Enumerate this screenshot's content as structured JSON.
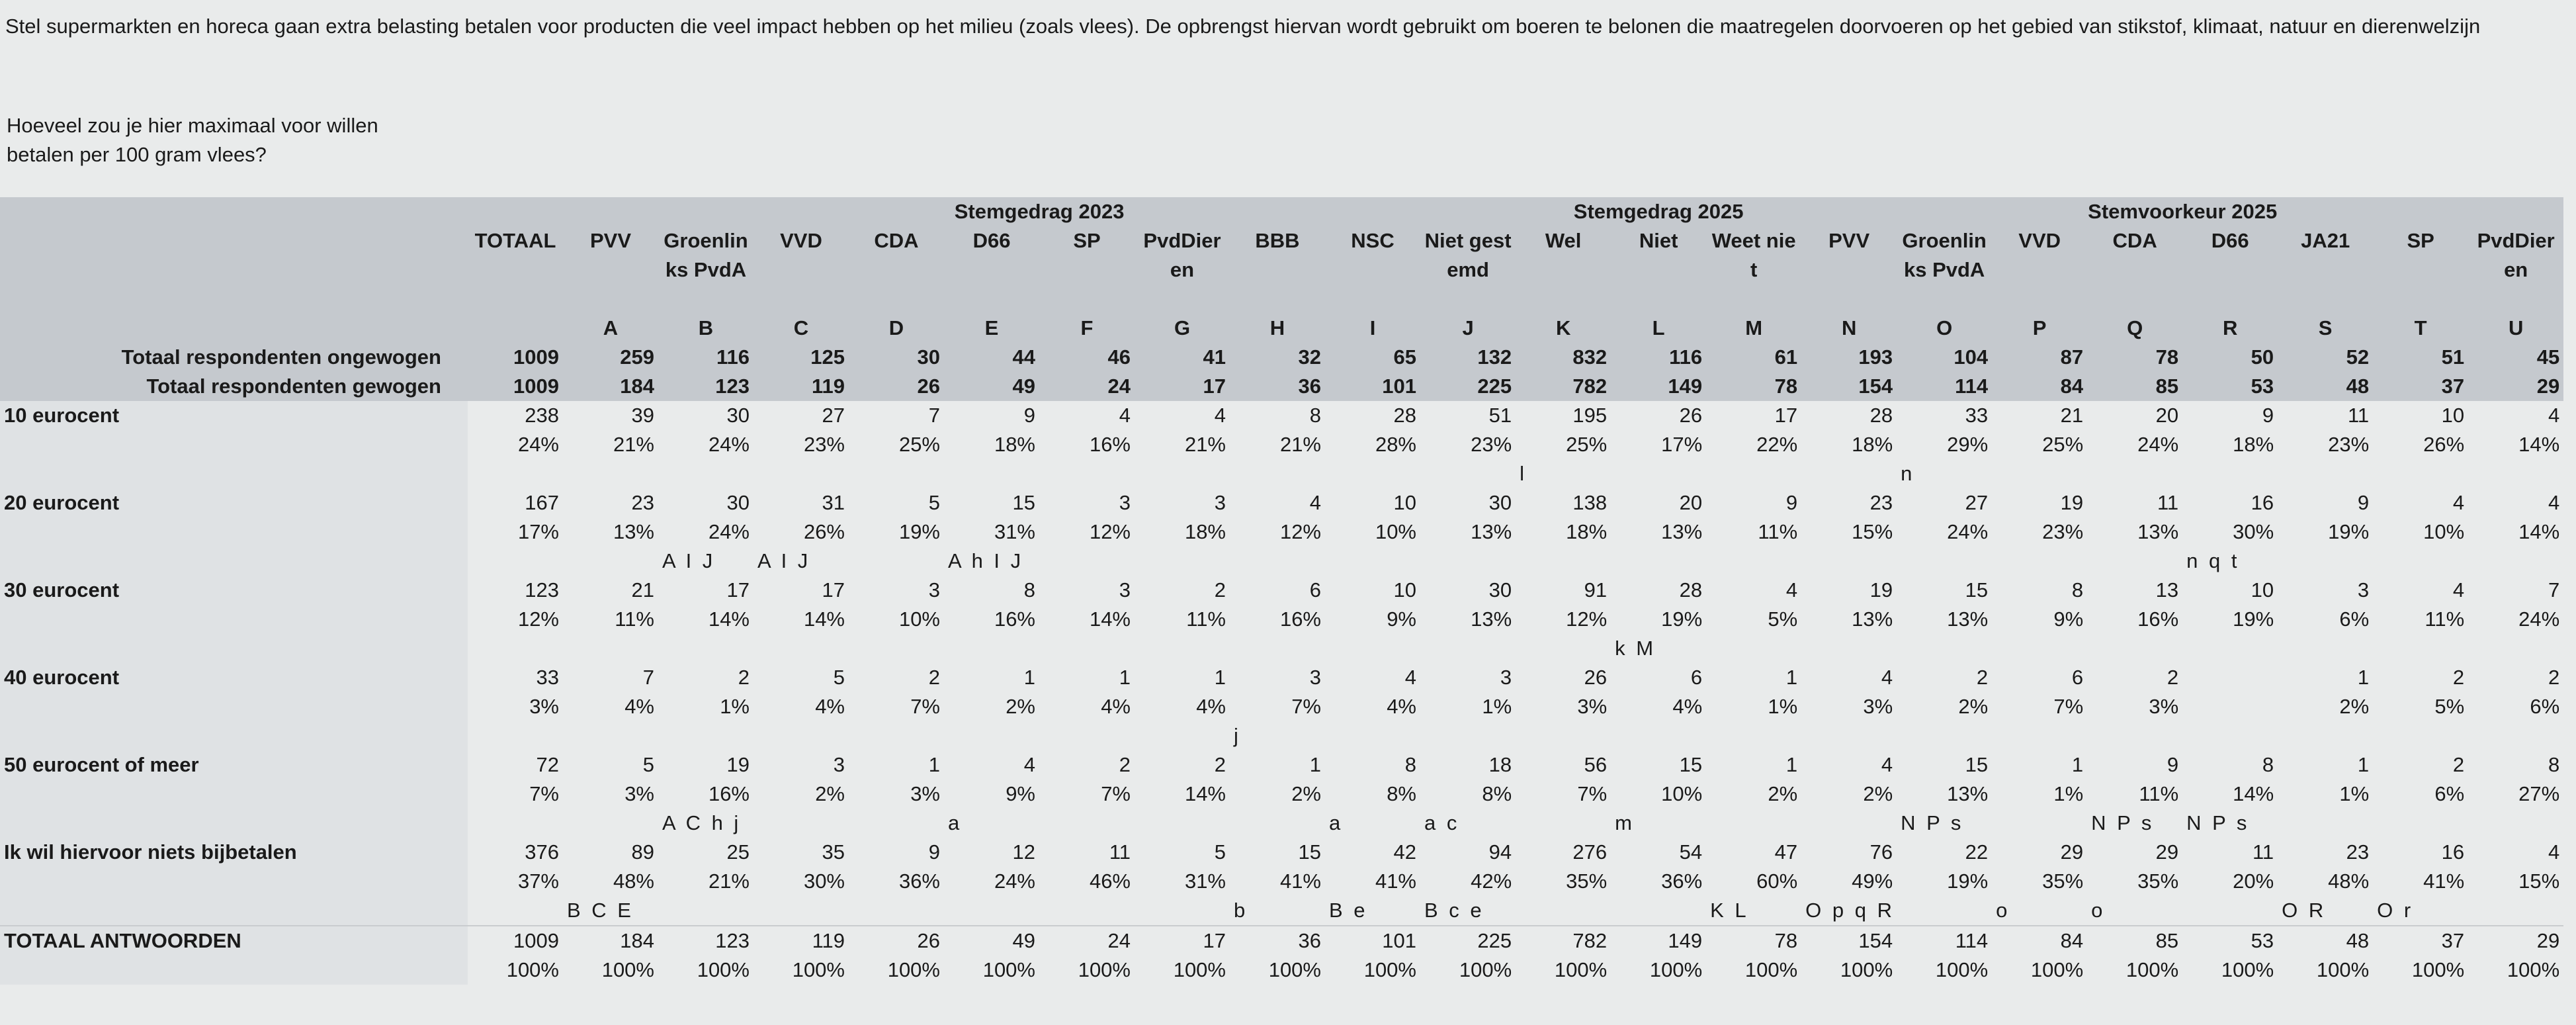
{
  "intro": "Stel supermarkten en horeca gaan extra belasting betalen voor producten die veel impact hebben op het milieu (zoals vlees). De opbrengst hiervan wordt gebruikt om boeren te belonen die maatregelen doorvoeren op het gebied van stikstof, klimaat, natuur en dierenwelzijn",
  "question": "Hoeveel zou je hier maximaal voor willen betalen per 100 gram vlees?",
  "groups": [
    {
      "label": "Stemgedrag 2023",
      "span": 10
    },
    {
      "label": "Stemgedrag 2025",
      "span": 3
    },
    {
      "label": "Stemvoorkeur 2025",
      "span": 8
    }
  ],
  "columns": [
    {
      "name": "TOTAAL"
    },
    {
      "name": "PVV",
      "letter": "A"
    },
    {
      "name": "Groenlinks PvdA",
      "letter": "B"
    },
    {
      "name": "VVD",
      "letter": "C"
    },
    {
      "name": "CDA",
      "letter": "D"
    },
    {
      "name": "D66",
      "letter": "E"
    },
    {
      "name": "SP",
      "letter": "F"
    },
    {
      "name": "PvdDieren",
      "letter": "G"
    },
    {
      "name": "BBB",
      "letter": "H"
    },
    {
      "name": "NSC",
      "letter": "I"
    },
    {
      "name": "Niet gestemd",
      "letter": "J"
    },
    {
      "name": "Wel",
      "letter": "K"
    },
    {
      "name": "Niet",
      "letter": "L"
    },
    {
      "name": "Weet niet",
      "letter": "M"
    },
    {
      "name": "PVV",
      "letter": "N"
    },
    {
      "name": "Groenlinks PvdA",
      "letter": "O"
    },
    {
      "name": "VVD",
      "letter": "P"
    },
    {
      "name": "CDA",
      "letter": "Q"
    },
    {
      "name": "D66",
      "letter": "R"
    },
    {
      "name": "JA21",
      "letter": "S"
    },
    {
      "name": "SP",
      "letter": "T"
    },
    {
      "name": "PvdDieren",
      "letter": "U"
    }
  ],
  "base_rows": [
    {
      "label": "Totaal respondenten ongewogen",
      "values": [
        1009,
        259,
        116,
        125,
        30,
        44,
        46,
        41,
        32,
        65,
        132,
        832,
        116,
        61,
        193,
        104,
        87,
        78,
        50,
        52,
        51,
        45
      ]
    },
    {
      "label": "Totaal respondenten gewogen",
      "values": [
        1009,
        184,
        123,
        119,
        26,
        49,
        24,
        17,
        36,
        101,
        225,
        782,
        149,
        78,
        154,
        114,
        84,
        85,
        53,
        48,
        37,
        29
      ]
    }
  ],
  "answers": [
    {
      "label": "10 eurocent",
      "counts": [
        238,
        39,
        30,
        27,
        7,
        9,
        4,
        4,
        8,
        28,
        51,
        195,
        26,
        17,
        28,
        33,
        21,
        20,
        9,
        11,
        10,
        4
      ],
      "percents": [
        "24%",
        "21%",
        "24%",
        "23%",
        "25%",
        "18%",
        "16%",
        "21%",
        "21%",
        "28%",
        "23%",
        "25%",
        "17%",
        "22%",
        "18%",
        "29%",
        "25%",
        "24%",
        "18%",
        "23%",
        "26%",
        "14%"
      ],
      "sig": [
        null,
        null,
        null,
        null,
        null,
        null,
        null,
        null,
        null,
        null,
        null,
        "l",
        null,
        null,
        null,
        "n",
        null,
        null,
        null,
        null,
        null,
        null
      ]
    },
    {
      "label": "20 eurocent",
      "counts": [
        167,
        23,
        30,
        31,
        5,
        15,
        3,
        3,
        4,
        10,
        30,
        138,
        20,
        9,
        23,
        27,
        19,
        11,
        16,
        9,
        4,
        4
      ],
      "percents": [
        "17%",
        "13%",
        "24%",
        "26%",
        "19%",
        "31%",
        "12%",
        "18%",
        "12%",
        "10%",
        "13%",
        "18%",
        "13%",
        "11%",
        "15%",
        "24%",
        "23%",
        "13%",
        "30%",
        "19%",
        "10%",
        "14%"
      ],
      "sig": [
        null,
        null,
        "A I J",
        "A I J",
        null,
        "A h I J",
        null,
        null,
        null,
        null,
        null,
        null,
        null,
        null,
        null,
        null,
        null,
        null,
        "n q t",
        null,
        null,
        null
      ]
    },
    {
      "label": "30 eurocent",
      "counts": [
        123,
        21,
        17,
        17,
        3,
        8,
        3,
        2,
        6,
        10,
        30,
        91,
        28,
        4,
        19,
        15,
        8,
        13,
        10,
        3,
        4,
        7
      ],
      "percents": [
        "12%",
        "11%",
        "14%",
        "14%",
        "10%",
        "16%",
        "14%",
        "11%",
        "16%",
        "9%",
        "13%",
        "12%",
        "19%",
        "5%",
        "13%",
        "13%",
        "9%",
        "16%",
        "19%",
        "6%",
        "11%",
        "24%"
      ],
      "sig": [
        null,
        null,
        null,
        null,
        null,
        null,
        null,
        null,
        null,
        null,
        null,
        null,
        "k M",
        null,
        null,
        null,
        null,
        null,
        null,
        null,
        null,
        null
      ]
    },
    {
      "label": "40 eurocent",
      "counts": [
        33,
        7,
        2,
        5,
        2,
        1,
        1,
        1,
        3,
        4,
        3,
        26,
        6,
        1,
        4,
        2,
        6,
        2,
        null,
        1,
        2,
        2
      ],
      "percents": [
        "3%",
        "4%",
        "1%",
        "4%",
        "7%",
        "2%",
        "4%",
        "4%",
        "7%",
        "4%",
        "1%",
        "3%",
        "4%",
        "1%",
        "3%",
        "2%",
        "7%",
        "3%",
        null,
        "2%",
        "5%",
        "6%"
      ],
      "sig": [
        null,
        null,
        null,
        null,
        null,
        null,
        null,
        null,
        "j",
        null,
        null,
        null,
        null,
        null,
        null,
        null,
        null,
        null,
        null,
        null,
        null,
        null
      ]
    },
    {
      "label": "50 eurocent of meer",
      "counts": [
        72,
        5,
        19,
        3,
        1,
        4,
        2,
        2,
        1,
        8,
        18,
        56,
        15,
        1,
        4,
        15,
        1,
        9,
        8,
        1,
        2,
        8
      ],
      "percents": [
        "7%",
        "3%",
        "16%",
        "2%",
        "3%",
        "9%",
        "7%",
        "14%",
        "2%",
        "8%",
        "8%",
        "7%",
        "10%",
        "2%",
        "2%",
        "13%",
        "1%",
        "11%",
        "14%",
        "1%",
        "6%",
        "27%"
      ],
      "sig": [
        null,
        null,
        "A C h j",
        null,
        null,
        "a",
        null,
        null,
        null,
        "a",
        "a c",
        null,
        "m",
        null,
        null,
        "N P s",
        null,
        "N P s",
        "N P s",
        null,
        null,
        null
      ]
    },
    {
      "label": "Ik wil hiervoor niets bijbetalen",
      "counts": [
        376,
        89,
        25,
        35,
        9,
        12,
        11,
        5,
        15,
        42,
        94,
        276,
        54,
        47,
        76,
        22,
        29,
        29,
        11,
        23,
        16,
        4
      ],
      "percents": [
        "37%",
        "48%",
        "21%",
        "30%",
        "36%",
        "24%",
        "46%",
        "31%",
        "41%",
        "41%",
        "42%",
        "35%",
        "36%",
        "60%",
        "49%",
        "19%",
        "35%",
        "35%",
        "20%",
        "48%",
        "41%",
        "15%"
      ],
      "sig": [
        null,
        "B C E",
        null,
        null,
        null,
        null,
        null,
        null,
        "b",
        "B e",
        "B c e",
        null,
        null,
        "K L",
        "O p q R",
        null,
        "o",
        "o",
        null,
        "O R",
        "O r",
        null
      ]
    }
  ],
  "totals": {
    "label": "TOTAAL ANTWOORDEN",
    "counts": [
      1009,
      184,
      123,
      119,
      26,
      49,
      24,
      17,
      36,
      101,
      225,
      782,
      149,
      78,
      154,
      114,
      84,
      85,
      53,
      48,
      37,
      29
    ],
    "percents": [
      "100%",
      "100%",
      "100%",
      "100%",
      "100%",
      "100%",
      "100%",
      "100%",
      "100%",
      "100%",
      "100%",
      "100%",
      "100%",
      "100%",
      "100%",
      "100%",
      "100%",
      "100%",
      "100%",
      "100%",
      "100%",
      "100%"
    ]
  }
}
